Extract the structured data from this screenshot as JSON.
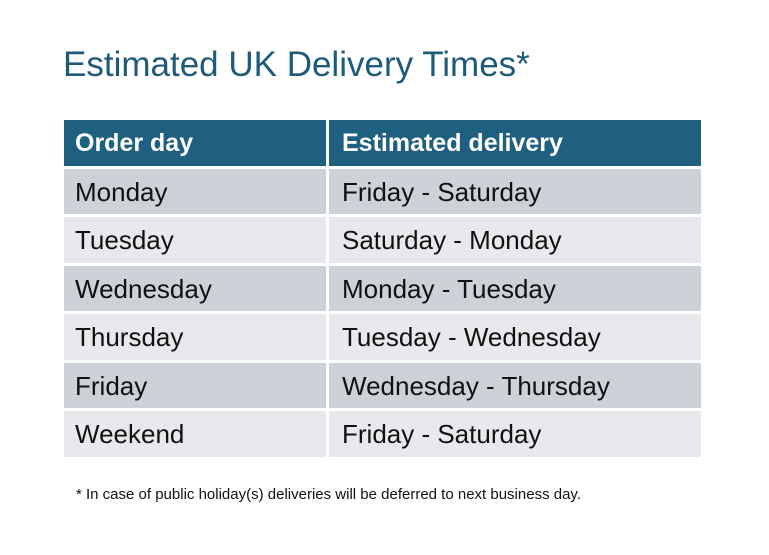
{
  "title": "Estimated UK Delivery Times*",
  "table": {
    "headers": [
      "Order day",
      "Estimated delivery"
    ],
    "rows": [
      [
        "Monday",
        "Friday - Saturday"
      ],
      [
        "Tuesday",
        "Saturday - Monday"
      ],
      [
        "Wednesday",
        "Monday - Tuesday"
      ],
      [
        "Thursday",
        "Tuesday - Wednesday"
      ],
      [
        "Friday",
        "Wednesday - Thursday"
      ],
      [
        "Weekend",
        "Friday - Saturday"
      ]
    ]
  },
  "footnote": "* In case of public holiday(s) deliveries will be deferred to next business day.",
  "colors": {
    "header": "#1f5f80",
    "row_dark": "#cdd1d8",
    "row_light": "#e7e9ec",
    "title": "#1e5a7a"
  }
}
